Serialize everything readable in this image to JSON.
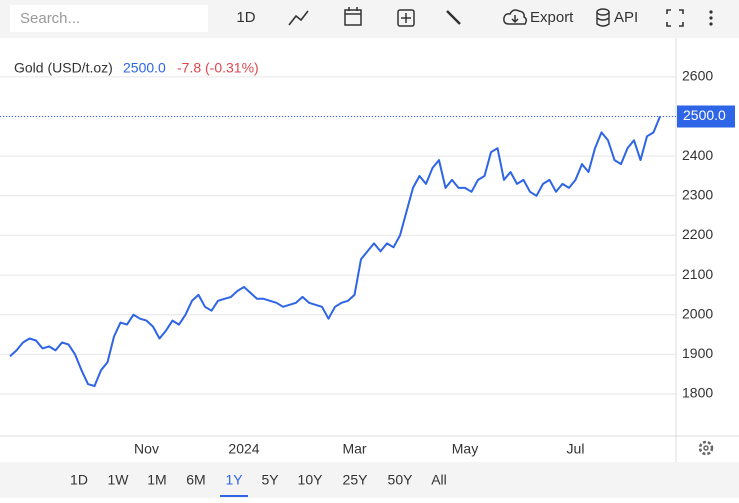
{
  "toolbar": {
    "search_placeholder": "Search...",
    "interval": "1D",
    "export": "Export",
    "api": "API"
  },
  "chart_data": {
    "type": "line",
    "symbol": "Gold (USD/t.oz)",
    "price": "2500.0",
    "change": "-7.8 (-0.31%)",
    "categories": [
      null,
      null,
      null,
      null,
      null,
      null,
      null,
      null,
      null,
      null,
      null,
      null,
      null,
      null,
      null,
      null,
      null,
      null,
      null,
      null,
      null,
      "Nov",
      null,
      null,
      null,
      null,
      null,
      null,
      null,
      null,
      null,
      null,
      null,
      null,
      null,
      null,
      "2024",
      null,
      null,
      null,
      null,
      null,
      null,
      null,
      null,
      null,
      null,
      null,
      null,
      null,
      null,
      null,
      null,
      "Mar",
      null,
      null,
      null,
      null,
      null,
      null,
      null,
      null,
      null,
      null,
      null,
      null,
      null,
      null,
      null,
      null,
      "May",
      null,
      null,
      null,
      null,
      null,
      null,
      null,
      null,
      null,
      null,
      null,
      null,
      null,
      null,
      null,
      null,
      "Jul",
      null,
      null,
      null,
      null,
      null,
      null,
      null,
      null,
      null,
      null,
      null,
      null,
      null
    ],
    "series": [
      {
        "name": "Gold (USD/t.oz)",
        "color": "#2e64e6",
        "values": [
          1895,
          1910,
          1930,
          1940,
          1935,
          1915,
          1920,
          1910,
          1930,
          1925,
          1900,
          1860,
          1825,
          1820,
          1860,
          1880,
          1945,
          1980,
          1975,
          2000,
          1990,
          1985,
          1970,
          1940,
          1960,
          1985,
          1975,
          2000,
          2035,
          2050,
          2020,
          2010,
          2035,
          2040,
          2045,
          2060,
          2070,
          2055,
          2040,
          2040,
          2035,
          2030,
          2020,
          2025,
          2030,
          2045,
          2030,
          2025,
          2020,
          1990,
          2020,
          2030,
          2035,
          2050,
          2140,
          2160,
          2180,
          2160,
          2180,
          2170,
          2200,
          2260,
          2320,
          2350,
          2330,
          2370,
          2390,
          2320,
          2340,
          2320,
          2320,
          2310,
          2340,
          2350,
          2410,
          2420,
          2340,
          2360,
          2330,
          2340,
          2310,
          2300,
          2330,
          2340,
          2310,
          2330,
          2320,
          2340,
          2380,
          2360,
          2420,
          2460,
          2440,
          2390,
          2380,
          2420,
          2440,
          2390,
          2450,
          2460,
          2500
        ]
      }
    ],
    "ylim": [
      1694,
      2693
    ],
    "yticks": [
      1800,
      1900,
      2000,
      2100,
      2200,
      2300,
      2400,
      2500,
      2600
    ],
    "grid": true
  },
  "ranges": {
    "options": [
      "1D",
      "1W",
      "1M",
      "6M",
      "1Y",
      "5Y",
      "10Y",
      "25Y",
      "50Y",
      "All"
    ],
    "selected": 4
  }
}
